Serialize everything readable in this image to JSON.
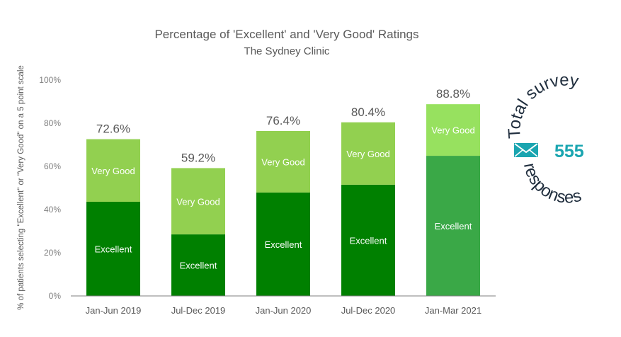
{
  "chart_data": {
    "type": "bar",
    "stacked": true,
    "title": "Percentage of 'Excellent' and 'Very Good' Ratings",
    "subtitle": "The Sydney Clinic",
    "ylabel": "% of patients selecting  \"Excellent\" or \"Very Good\" on a 5 point scale",
    "xlabel": "",
    "ylim": [
      0,
      100
    ],
    "yticks": [
      "0%",
      "20%",
      "40%",
      "60%",
      "80%",
      "100%"
    ],
    "grid": false,
    "categories": [
      "Jan-Jun 2019",
      "Jul-Dec 2019",
      "Jan-Jun 2020",
      "Jul-Dec 2020",
      "Jan-Mar 2021"
    ],
    "series": [
      {
        "name": "Excellent",
        "values": [
          43.6,
          28.5,
          47.9,
          51.5,
          64.9
        ],
        "color": "#008000",
        "highlight_color": "#3aa847"
      },
      {
        "name": "Very Good",
        "values": [
          29.0,
          30.7,
          28.5,
          28.9,
          23.9
        ],
        "color": "#92d050",
        "highlight_color": "#97e15f"
      }
    ],
    "totals": [
      "72.6%",
      "59.2%",
      "76.4%",
      "80.4%",
      "88.8%"
    ],
    "highlighted_category": "Jan-Mar 2021"
  },
  "badge": {
    "top_text": "Total survey",
    "count": "555",
    "bottom_text": "responses",
    "icon": "envelope-icon",
    "accent_color": "#1aa5b0"
  }
}
